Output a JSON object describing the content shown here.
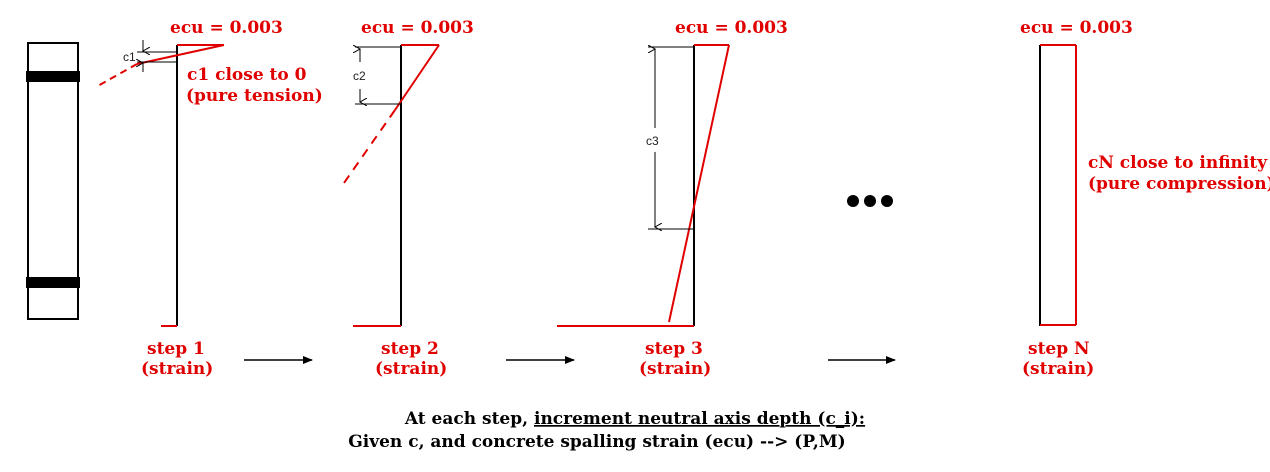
{
  "steps": [
    {
      "ecu_label": "ecu = 0.003",
      "name": "step 1",
      "sub": "(strain)",
      "dim_label": "c1",
      "note_line1": "c1 close to 0",
      "note_line2": "(pure tension)"
    },
    {
      "ecu_label": "ecu = 0.003",
      "name": "step 2",
      "sub": "(strain)",
      "dim_label": "c2"
    },
    {
      "ecu_label": "ecu = 0.003",
      "name": "step 3",
      "sub": "(strain)",
      "dim_label": "c3"
    },
    {
      "ecu_label": "ecu = 0.003",
      "name": "step N",
      "sub": "(strain)",
      "note_line1": "cN close to infinity",
      "note_line2": "(pure compression)"
    }
  ],
  "caption": {
    "prefix": "At each step, ",
    "underlined": "increment neutral axis depth (c_i):",
    "line2": "Given c, and concrete spalling strain (ecu) --> (P,M)"
  },
  "colors": {
    "strain": "#e00000",
    "section": "#000000"
  }
}
